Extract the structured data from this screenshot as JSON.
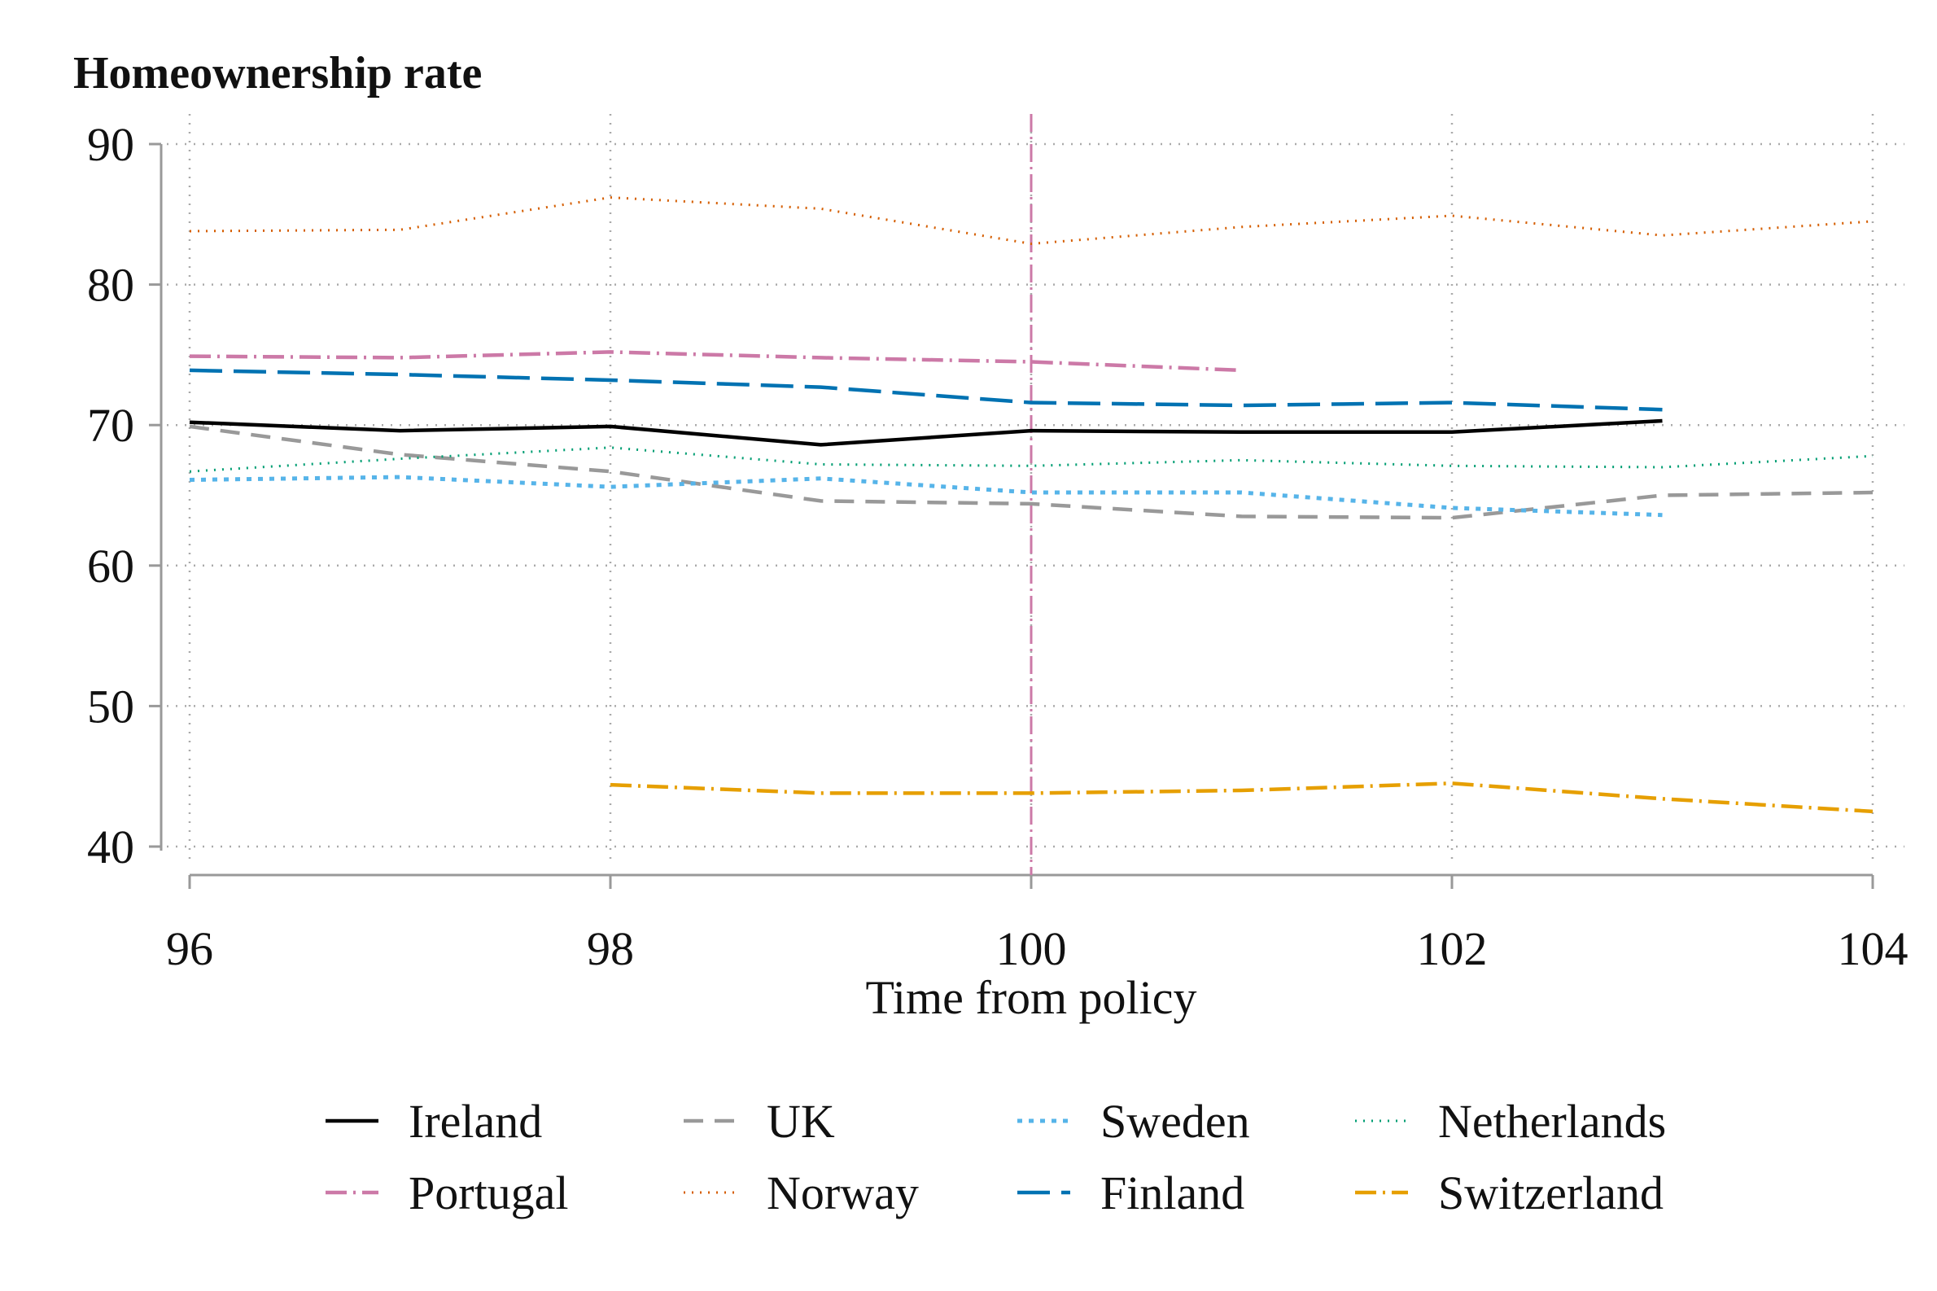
{
  "chart_data": {
    "type": "line",
    "title": "Homeownership rate",
    "xlabel": "Time from policy",
    "ylabel": "",
    "xlim": [
      96,
      104
    ],
    "ylim": [
      40,
      90
    ],
    "xticks": [
      96,
      98,
      100,
      102,
      104
    ],
    "yticks": [
      40,
      50,
      60,
      70,
      80,
      90
    ],
    "grid": true,
    "reference_line_x": 100,
    "reference_line_color": "#cc79a7",
    "legend_position": "bottom",
    "series": [
      {
        "name": "Ireland",
        "color": "#000000",
        "dash": "solid",
        "x": [
          96,
          97,
          98,
          99,
          100,
          101,
          102,
          103
        ],
        "values": [
          70.2,
          69.6,
          69.9,
          68.6,
          69.6,
          69.5,
          69.5,
          70.3
        ]
      },
      {
        "name": "UK",
        "color": "#999999",
        "dash": "dash",
        "x": [
          96,
          97,
          98,
          99,
          100,
          101,
          102,
          103,
          104
        ],
        "values": [
          69.9,
          67.9,
          66.7,
          64.6,
          64.4,
          63.5,
          63.4,
          65.0,
          65.2
        ]
      },
      {
        "name": "Sweden",
        "color": "#56b4e9",
        "dash": "dot",
        "x": [
          96,
          97,
          98,
          99,
          100,
          101,
          102,
          103
        ],
        "values": [
          66.1,
          66.3,
          65.6,
          66.2,
          65.2,
          65.2,
          64.1,
          63.6
        ]
      },
      {
        "name": "Netherlands",
        "color": "#009e73",
        "dash": "finedot",
        "x": [
          96,
          97,
          98,
          99,
          100,
          101,
          102,
          103,
          104
        ],
        "values": [
          66.7,
          67.6,
          68.4,
          67.2,
          67.1,
          67.5,
          67.1,
          67.0,
          67.8
        ]
      },
      {
        "name": "Portugal",
        "color": "#cc79a7",
        "dash": "dashdot",
        "x": [
          96,
          97,
          98,
          99,
          100,
          101
        ],
        "values": [
          74.9,
          74.8,
          75.2,
          74.8,
          74.5,
          73.9
        ]
      },
      {
        "name": "Norway",
        "color": "#d55e00",
        "dash": "finedot",
        "x": [
          96,
          97,
          98,
          99,
          100,
          101,
          102,
          103,
          104
        ],
        "values": [
          83.8,
          83.9,
          86.2,
          85.4,
          82.9,
          84.1,
          84.9,
          83.5,
          84.5
        ]
      },
      {
        "name": "Finland",
        "color": "#0072b2",
        "dash": "longdash",
        "x": [
          96,
          97,
          98,
          99,
          100,
          101,
          102,
          103
        ],
        "values": [
          73.9,
          73.6,
          73.2,
          72.7,
          71.6,
          71.4,
          71.6,
          71.1
        ]
      },
      {
        "name": "Switzerland",
        "color": "#e69f00",
        "dash": "dashdot",
        "x": [
          98,
          99,
          100,
          101,
          102,
          103,
          104
        ],
        "values": [
          44.4,
          43.8,
          43.8,
          44.0,
          44.5,
          43.4,
          42.5
        ]
      }
    ]
  }
}
